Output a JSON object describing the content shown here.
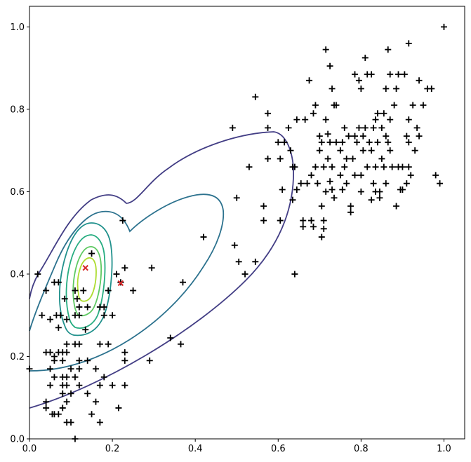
{
  "chart_data": {
    "type": "scatter",
    "title": "",
    "xlabel": "",
    "ylabel": "",
    "xlim": [
      0,
      1.05
    ],
    "ylim": [
      0,
      1.05
    ],
    "grid": false,
    "xticks": [
      "0.0",
      "0.2",
      "0.4",
      "0.6",
      "0.8",
      "1.0"
    ],
    "yticks": [
      "0.0",
      "0.2",
      "0.4",
      "0.6",
      "0.8",
      "1.0"
    ],
    "colors": {
      "points": "#000000",
      "centers": "#d62728",
      "contours": [
        "#433e85",
        "#2c728e",
        "#21918c",
        "#27ad81",
        "#5ec962",
        "#addc30"
      ]
    },
    "series": [
      {
        "marker": "plus",
        "points": [
          [
            0.0,
            0.17
          ],
          [
            0.02,
            0.4
          ],
          [
            0.03,
            0.3
          ],
          [
            0.04,
            0.36
          ],
          [
            0.04,
            0.21
          ],
          [
            0.04,
            0.09
          ],
          [
            0.04,
            0.075
          ],
          [
            0.05,
            0.29
          ],
          [
            0.05,
            0.21
          ],
          [
            0.05,
            0.17
          ],
          [
            0.05,
            0.13
          ],
          [
            0.055,
            0.06
          ],
          [
            0.06,
            0.38
          ],
          [
            0.06,
            0.2
          ],
          [
            0.06,
            0.19
          ],
          [
            0.06,
            0.15
          ],
          [
            0.06,
            0.06
          ],
          [
            0.065,
            0.3
          ],
          [
            0.07,
            0.38
          ],
          [
            0.07,
            0.27
          ],
          [
            0.07,
            0.21
          ],
          [
            0.07,
            0.06
          ],
          [
            0.075,
            0.3
          ],
          [
            0.08,
            0.21
          ],
          [
            0.08,
            0.19
          ],
          [
            0.08,
            0.15
          ],
          [
            0.08,
            0.13
          ],
          [
            0.08,
            0.11
          ],
          [
            0.08,
            0.075
          ],
          [
            0.085,
            0.34
          ],
          [
            0.09,
            0.29
          ],
          [
            0.09,
            0.23
          ],
          [
            0.09,
            0.21
          ],
          [
            0.09,
            0.15
          ],
          [
            0.09,
            0.13
          ],
          [
            0.09,
            0.09
          ],
          [
            0.09,
            0.04
          ],
          [
            0.1,
            0.17
          ],
          [
            0.1,
            0.11
          ],
          [
            0.1,
            0.04
          ],
          [
            0.11,
            0.36
          ],
          [
            0.11,
            0.3
          ],
          [
            0.11,
            0.23
          ],
          [
            0.11,
            0.15
          ],
          [
            0.11,
            0.0
          ],
          [
            0.115,
            0.34
          ],
          [
            0.12,
            0.32
          ],
          [
            0.12,
            0.3
          ],
          [
            0.12,
            0.23
          ],
          [
            0.12,
            0.19
          ],
          [
            0.12,
            0.17
          ],
          [
            0.12,
            0.13
          ],
          [
            0.13,
            0.36
          ],
          [
            0.135,
            0.265
          ],
          [
            0.14,
            0.32
          ],
          [
            0.14,
            0.19
          ],
          [
            0.14,
            0.11
          ],
          [
            0.15,
            0.45
          ],
          [
            0.15,
            0.06
          ],
          [
            0.16,
            0.17
          ],
          [
            0.16,
            0.09
          ],
          [
            0.17,
            0.32
          ],
          [
            0.17,
            0.23
          ],
          [
            0.17,
            0.13
          ],
          [
            0.17,
            0.04
          ],
          [
            0.18,
            0.32
          ],
          [
            0.18,
            0.3
          ],
          [
            0.18,
            0.15
          ],
          [
            0.19,
            0.23
          ],
          [
            0.19,
            0.36
          ],
          [
            0.2,
            0.3
          ],
          [
            0.2,
            0.13
          ],
          [
            0.21,
            0.4
          ],
          [
            0.215,
            0.075
          ],
          [
            0.22,
            0.38
          ],
          [
            0.225,
            0.53
          ],
          [
            0.23,
            0.415
          ],
          [
            0.23,
            0.21
          ],
          [
            0.23,
            0.19
          ],
          [
            0.23,
            0.13
          ],
          [
            0.25,
            0.36
          ],
          [
            0.29,
            0.19
          ],
          [
            0.295,
            0.415
          ],
          [
            0.34,
            0.245
          ],
          [
            0.365,
            0.23
          ],
          [
            0.37,
            0.38
          ],
          [
            0.42,
            0.49
          ],
          [
            0.49,
            0.755
          ],
          [
            0.495,
            0.47
          ],
          [
            0.5,
            0.585
          ],
          [
            0.505,
            0.43
          ],
          [
            0.52,
            0.4
          ],
          [
            0.53,
            0.66
          ],
          [
            0.545,
            0.43
          ],
          [
            0.545,
            0.83
          ],
          [
            0.565,
            0.53
          ],
          [
            0.565,
            0.565
          ],
          [
            0.575,
            0.755
          ],
          [
            0.575,
            0.68
          ],
          [
            0.575,
            0.79
          ],
          [
            0.6,
            0.72
          ],
          [
            0.605,
            0.53
          ],
          [
            0.605,
            0.68
          ],
          [
            0.61,
            0.605
          ],
          [
            0.615,
            0.72
          ],
          [
            0.625,
            0.755
          ],
          [
            0.63,
            0.7
          ],
          [
            0.635,
            0.58
          ],
          [
            0.635,
            0.66
          ],
          [
            0.64,
            0.66
          ],
          [
            0.64,
            0.4
          ],
          [
            0.645,
            0.775
          ],
          [
            0.645,
            0.605
          ],
          [
            0.655,
            0.62
          ],
          [
            0.66,
            0.515
          ],
          [
            0.66,
            0.53
          ],
          [
            0.665,
            0.775
          ],
          [
            0.67,
            0.62
          ],
          [
            0.675,
            0.87
          ],
          [
            0.68,
            0.53
          ],
          [
            0.68,
            0.64
          ],
          [
            0.685,
            0.515
          ],
          [
            0.685,
            0.79
          ],
          [
            0.69,
            0.81
          ],
          [
            0.69,
            0.66
          ],
          [
            0.695,
            0.62
          ],
          [
            0.7,
            0.735
          ],
          [
            0.7,
            0.7
          ],
          [
            0.705,
            0.72
          ],
          [
            0.705,
            0.565
          ],
          [
            0.705,
            0.49
          ],
          [
            0.71,
            0.53
          ],
          [
            0.71,
            0.51
          ],
          [
            0.71,
            0.66
          ],
          [
            0.715,
            0.6
          ],
          [
            0.715,
            0.775
          ],
          [
            0.715,
            0.945
          ],
          [
            0.72,
            0.68
          ],
          [
            0.72,
            0.74
          ],
          [
            0.725,
            0.625
          ],
          [
            0.725,
            0.72
          ],
          [
            0.725,
            0.905
          ],
          [
            0.73,
            0.605
          ],
          [
            0.73,
            0.66
          ],
          [
            0.73,
            0.85
          ],
          [
            0.735,
            0.585
          ],
          [
            0.735,
            0.81
          ],
          [
            0.74,
            0.72
          ],
          [
            0.74,
            0.81
          ],
          [
            0.75,
            0.7
          ],
          [
            0.75,
            0.64
          ],
          [
            0.755,
            0.605
          ],
          [
            0.755,
            0.72
          ],
          [
            0.76,
            0.755
          ],
          [
            0.76,
            0.66
          ],
          [
            0.765,
            0.68
          ],
          [
            0.765,
            0.62
          ],
          [
            0.77,
            0.735
          ],
          [
            0.775,
            0.565
          ],
          [
            0.775,
            0.55
          ],
          [
            0.78,
            0.68
          ],
          [
            0.785,
            0.64
          ],
          [
            0.785,
            0.735
          ],
          [
            0.785,
            0.885
          ],
          [
            0.79,
            0.72
          ],
          [
            0.795,
            0.755
          ],
          [
            0.795,
            0.87
          ],
          [
            0.8,
            0.64
          ],
          [
            0.8,
            0.6
          ],
          [
            0.8,
            0.85
          ],
          [
            0.805,
            0.735
          ],
          [
            0.805,
            0.7
          ],
          [
            0.81,
            0.925
          ],
          [
            0.81,
            0.755
          ],
          [
            0.815,
            0.885
          ],
          [
            0.815,
            0.66
          ],
          [
            0.82,
            0.72
          ],
          [
            0.825,
            0.7
          ],
          [
            0.825,
            0.58
          ],
          [
            0.825,
            0.885
          ],
          [
            0.83,
            0.62
          ],
          [
            0.83,
            0.755
          ],
          [
            0.835,
            0.6
          ],
          [
            0.835,
            0.775
          ],
          [
            0.835,
            0.66
          ],
          [
            0.84,
            0.72
          ],
          [
            0.84,
            0.79
          ],
          [
            0.845,
            0.6
          ],
          [
            0.845,
            0.585
          ],
          [
            0.85,
            0.755
          ],
          [
            0.85,
            0.68
          ],
          [
            0.855,
            0.66
          ],
          [
            0.855,
            0.79
          ],
          [
            0.86,
            0.62
          ],
          [
            0.86,
            0.85
          ],
          [
            0.86,
            0.735
          ],
          [
            0.865,
            0.945
          ],
          [
            0.865,
            0.72
          ],
          [
            0.87,
            0.7
          ],
          [
            0.87,
            0.775
          ],
          [
            0.87,
            0.885
          ],
          [
            0.875,
            0.66
          ],
          [
            0.88,
            0.81
          ],
          [
            0.885,
            0.565
          ],
          [
            0.885,
            0.85
          ],
          [
            0.89,
            0.66
          ],
          [
            0.89,
            0.885
          ],
          [
            0.895,
            0.605
          ],
          [
            0.9,
            0.605
          ],
          [
            0.9,
            0.66
          ],
          [
            0.905,
            0.885
          ],
          [
            0.91,
            0.62
          ],
          [
            0.91,
            0.735
          ],
          [
            0.915,
            0.775
          ],
          [
            0.915,
            0.96
          ],
          [
            0.915,
            0.72
          ],
          [
            0.915,
            0.66
          ],
          [
            0.92,
            0.64
          ],
          [
            0.925,
            0.81
          ],
          [
            0.93,
            0.7
          ],
          [
            0.935,
            0.755
          ],
          [
            0.94,
            0.735
          ],
          [
            0.94,
            0.87
          ],
          [
            0.95,
            0.81
          ],
          [
            0.96,
            0.85
          ],
          [
            0.97,
            0.85
          ],
          [
            0.98,
            0.64
          ],
          [
            0.99,
            0.62
          ],
          [
            1.0,
            1.0
          ]
        ]
      },
      {
        "marker": "x",
        "points": [
          [
            0.135,
            0.415
          ],
          [
            0.22,
            0.378
          ]
        ]
      }
    ]
  }
}
